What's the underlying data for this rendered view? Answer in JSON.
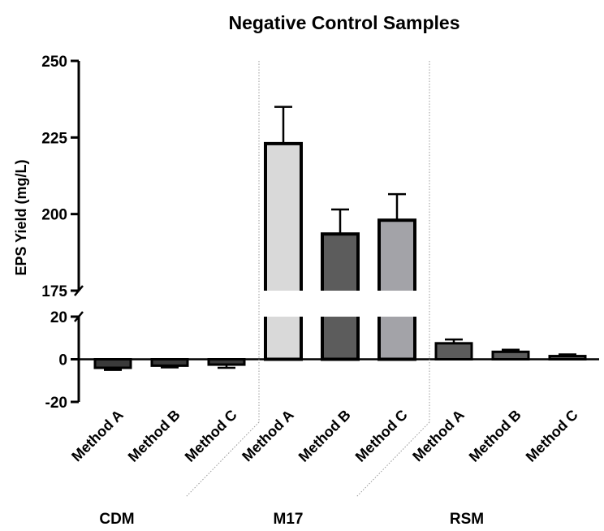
{
  "chart_data": {
    "type": "bar",
    "title": "Negative Control Samples",
    "ylabel": "EPS  Yield (mg/L)",
    "xlabel": "",
    "axis_break": {
      "lower_range": [
        -20,
        20
      ],
      "upper_range": [
        175,
        250
      ]
    },
    "lower_ticks": [
      "-20",
      "0",
      "20"
    ],
    "upper_ticks": [
      "175",
      "200",
      "225",
      "250"
    ],
    "groups": [
      "CDM",
      "M17",
      "RSM"
    ],
    "categories": [
      "Method A",
      "Method B",
      "Method C",
      "Method A",
      "Method B",
      "Method C",
      "Method A",
      "Method B",
      "Method C"
    ],
    "values": [
      -4,
      -3,
      -2.5,
      223,
      193.5,
      198,
      7.5,
      3.5,
      1.5
    ],
    "errors": [
      1,
      0.8,
      1.5,
      12,
      8,
      8.5,
      1.8,
      1,
      0.8
    ],
    "colors": [
      "#3a3a3a",
      "#3a3a3a",
      "#3a3a3a",
      "#d9d9d9",
      "#5c5c5c",
      "#a3a3a8",
      "#5c5c5c",
      "#5c5c5c",
      "#5c5c5c"
    ],
    "grid": false
  }
}
